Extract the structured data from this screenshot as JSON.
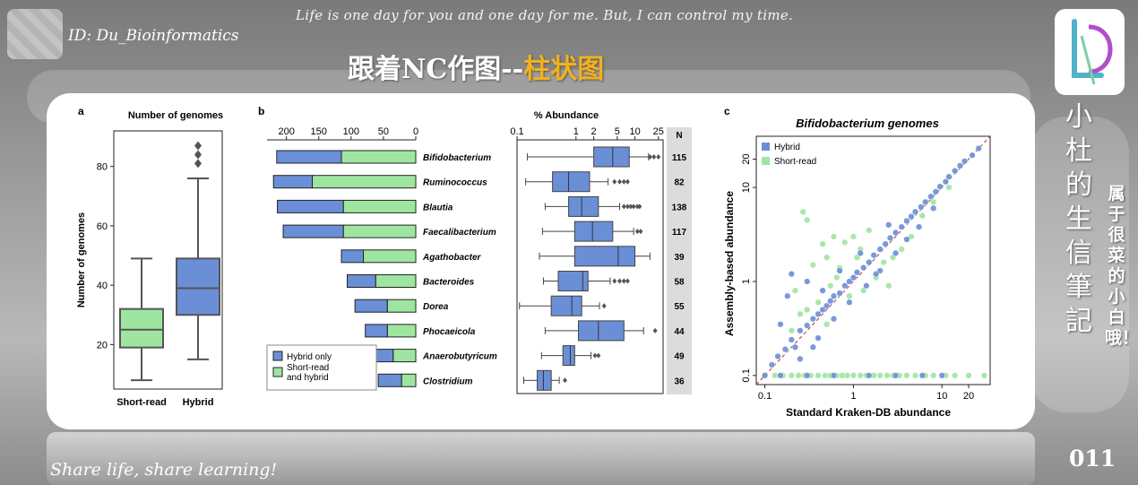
{
  "header": {
    "id_text": "ID: Du_Bioinformatics",
    "motto": "Life is one day for you and one day for me. But, I can control my time.",
    "title_main": "跟着NC作图--",
    "title_highlight": "柱状图",
    "side_title": "小杜的生信筆記",
    "side_subtitle": "属于很菜的小白哦！",
    "footer_share": "Share life, share learning!",
    "page_number": "011"
  },
  "colors": {
    "hybrid": "#6b8fd6",
    "short": "#9ee6a0",
    "accent_title": "#f2b21b",
    "diag": "#b0302a"
  },
  "chart_data": [
    {
      "panel": "a",
      "type": "box",
      "ylabel": "Number of genomes",
      "categories": [
        "Short-read",
        "Hybrid"
      ],
      "yticks": [
        20,
        40,
        60,
        80
      ],
      "ylim": [
        5,
        92
      ],
      "boxes": [
        {
          "name": "Short-read",
          "min": 8,
          "q1": 19,
          "median": 25,
          "q3": 32,
          "max": 49,
          "outliers": []
        },
        {
          "name": "Hybrid",
          "min": 15,
          "q1": 30,
          "median": 39,
          "q3": 49,
          "max": 76,
          "outliers": [
            81,
            84,
            87
          ]
        }
      ]
    },
    {
      "panel": "b",
      "type": "bar",
      "title": "Number of genomes",
      "xticks": [
        200,
        150,
        100,
        50,
        0
      ],
      "xlim": [
        0,
        230
      ],
      "categories": [
        "Bifidobacterium",
        "Ruminococcus",
        "Blautia",
        "Faecalibacterium",
        "Agathobacter",
        "Bacteroides",
        "Dorea",
        "Phocaeicola",
        "Anaerobutyricum",
        "Clostridium"
      ],
      "series": [
        {
          "name": "Hybrid only",
          "values": [
            100,
            60,
            102,
            93,
            34,
            44,
            50,
            34,
            40,
            36
          ]
        },
        {
          "name": "Short-read and hybrid",
          "values": [
            115,
            160,
            112,
            112,
            81,
            62,
            44,
            44,
            35,
            22
          ]
        }
      ],
      "legend": [
        "Hybrid only",
        "Short-read and hybrid"
      ],
      "counts_header": "N",
      "counts": [
        "115",
        "82",
        "138",
        "117",
        "39",
        "58",
        "55",
        "44",
        "49",
        "36"
      ]
    },
    {
      "panel": "b",
      "type": "box",
      "title": "% Abundance",
      "xscale": "log",
      "xticks": [
        "0.1",
        "1",
        "2",
        "5",
        "10",
        "25"
      ],
      "xlim": [
        0.1,
        30
      ],
      "boxes": [
        {
          "name": "Bifidobacterium",
          "min": 0.15,
          "q1": 2.0,
          "median": 4.2,
          "q3": 8.0,
          "max": 17,
          "outliers": [
            18,
            21,
            25
          ]
        },
        {
          "name": "Ruminococcus",
          "min": 0.14,
          "q1": 0.4,
          "median": 0.75,
          "q3": 1.7,
          "max": 3.5,
          "outliers": [
            4.5,
            5.5,
            6.5,
            7.5
          ]
        },
        {
          "name": "Blautia",
          "min": 0.3,
          "q1": 0.75,
          "median": 1.25,
          "q3": 2.4,
          "max": 5.5,
          "outliers": [
            6.5,
            7.5,
            8.5,
            9.5,
            11,
            12
          ]
        },
        {
          "name": "Faecalibacterium",
          "min": 0.27,
          "q1": 0.95,
          "median": 1.9,
          "q3": 4.2,
          "max": 9.5,
          "outliers": [
            11,
            12.5
          ]
        },
        {
          "name": "Agathobacter",
          "min": 0.24,
          "q1": 0.95,
          "median": 5.2,
          "q3": 10,
          "max": 18,
          "outliers": []
        },
        {
          "name": "Bacteroides",
          "min": 0.28,
          "q1": 0.5,
          "median": 1.3,
          "q3": 1.6,
          "max": 3.8,
          "outliers": [
            4.5,
            5.5,
            6.5,
            7.5
          ]
        },
        {
          "name": "Dorea",
          "min": 0.11,
          "q1": 0.38,
          "median": 0.85,
          "q3": 1.25,
          "max": 2.5,
          "outliers": [
            3.0
          ]
        },
        {
          "name": "Phocaeicola",
          "min": 0.3,
          "q1": 1.1,
          "median": 2.4,
          "q3": 6.5,
          "max": 14,
          "outliers": [
            22
          ]
        },
        {
          "name": "Anaerobutyricum",
          "min": 0.26,
          "q1": 0.6,
          "median": 0.8,
          "q3": 0.95,
          "max": 1.8,
          "outliers": [
            2.1,
            2.4
          ]
        },
        {
          "name": "Clostridium",
          "min": 0.13,
          "q1": 0.22,
          "median": 0.28,
          "q3": 0.38,
          "max": 0.52,
          "outliers": [
            0.65
          ]
        }
      ]
    },
    {
      "panel": "c",
      "type": "scatter",
      "title": "Bifidobacterium genomes",
      "xlabel": "Standard Kraken-DB abundance",
      "ylabel": "Assembly-based abundance",
      "xscale": "log",
      "yscale": "log",
      "xticks": [
        "0.1",
        "1",
        "10",
        "20"
      ],
      "yticks": [
        "0.1",
        "1",
        "10",
        "20"
      ],
      "xlim": [
        0.08,
        35
      ],
      "ylim": [
        0.08,
        35
      ],
      "legend": [
        "Hybrid",
        "Short-read"
      ],
      "diagonal": true,
      "series": [
        {
          "name": "Hybrid",
          "points": [
            [
              0.1,
              0.1
            ],
            [
              0.12,
              0.13
            ],
            [
              0.14,
              0.16
            ],
            [
              0.17,
              0.19
            ],
            [
              0.2,
              0.24
            ],
            [
              0.22,
              0.2
            ],
            [
              0.25,
              0.3
            ],
            [
              0.3,
              0.34
            ],
            [
              0.35,
              0.4
            ],
            [
              0.4,
              0.45
            ],
            [
              0.45,
              0.5
            ],
            [
              0.5,
              0.55
            ],
            [
              0.55,
              0.62
            ],
            [
              0.6,
              0.7
            ],
            [
              0.7,
              0.75
            ],
            [
              0.8,
              0.9
            ],
            [
              0.9,
              1.0
            ],
            [
              1.0,
              1.1
            ],
            [
              1.1,
              1.25
            ],
            [
              1.3,
              1.4
            ],
            [
              1.5,
              1.6
            ],
            [
              1.7,
              1.9
            ],
            [
              2.0,
              2.2
            ],
            [
              2.3,
              2.5
            ],
            [
              2.6,
              2.9
            ],
            [
              3.0,
              3.3
            ],
            [
              3.5,
              3.8
            ],
            [
              4.0,
              4.4
            ],
            [
              4.5,
              4.9
            ],
            [
              5.0,
              5.5
            ],
            [
              5.8,
              6.2
            ],
            [
              6.5,
              7.0
            ],
            [
              7.5,
              8.0
            ],
            [
              8.5,
              9.0
            ],
            [
              9.5,
              10.2
            ],
            [
              11,
              11.5
            ],
            [
              12,
              13
            ],
            [
              14,
              15
            ],
            [
              16,
              17
            ],
            [
              18,
              19
            ],
            [
              22,
              22
            ],
            [
              26,
              26
            ],
            [
              0.18,
              0.7
            ],
            [
              0.3,
              1.0
            ],
            [
              0.25,
              0.15
            ],
            [
              0.6,
              0.4
            ],
            [
              0.9,
              0.6
            ],
            [
              1.4,
              0.9
            ],
            [
              2.0,
              1.3
            ],
            [
              3.0,
              2.0
            ],
            [
              4.0,
              2.8
            ],
            [
              0.45,
              0.8
            ],
            [
              1.2,
              2.0
            ],
            [
              2.5,
              4.0
            ],
            [
              0.7,
              1.3
            ],
            [
              0.2,
              1.2
            ],
            [
              0.15,
              0.35
            ],
            [
              5.5,
              3.8
            ],
            [
              8.0,
              6.0
            ],
            [
              0.15,
              0.1
            ],
            [
              0.3,
              0.1
            ],
            [
              0.6,
              0.1
            ],
            [
              1.5,
              0.1
            ],
            [
              3.0,
              0.1
            ],
            [
              6.0,
              0.1
            ],
            [
              10,
              0.1
            ],
            [
              0.4,
              0.25
            ],
            [
              1.8,
              1.2
            ],
            [
              0.35,
              0.2
            ]
          ]
        },
        {
          "name": "Short-read",
          "points": [
            [
              0.1,
              0.1
            ],
            [
              0.13,
              0.1
            ],
            [
              0.16,
              0.1
            ],
            [
              0.2,
              0.1
            ],
            [
              0.24,
              0.1
            ],
            [
              0.28,
              0.1
            ],
            [
              0.33,
              0.1
            ],
            [
              0.4,
              0.1
            ],
            [
              0.48,
              0.1
            ],
            [
              0.55,
              0.1
            ],
            [
              0.65,
              0.1
            ],
            [
              0.75,
              0.1
            ],
            [
              0.85,
              0.1
            ],
            [
              1.0,
              0.1
            ],
            [
              1.2,
              0.1
            ],
            [
              1.4,
              0.1
            ],
            [
              1.7,
              0.1
            ],
            [
              2.0,
              0.1
            ],
            [
              2.4,
              0.1
            ],
            [
              2.8,
              0.1
            ],
            [
              3.3,
              0.1
            ],
            [
              4.0,
              0.1
            ],
            [
              5.0,
              0.1
            ],
            [
              6.5,
              0.1
            ],
            [
              8.0,
              0.1
            ],
            [
              11,
              0.1
            ],
            [
              14,
              0.1
            ],
            [
              20,
              0.1
            ],
            [
              30,
              0.1
            ],
            [
              0.27,
              5.5
            ],
            [
              0.3,
              4.5
            ],
            [
              0.45,
              2.5
            ],
            [
              0.6,
              3.0
            ],
            [
              0.8,
              2.6
            ],
            [
              1.0,
              3.0
            ],
            [
              1.2,
              2.2
            ],
            [
              1.5,
              3.5
            ],
            [
              0.35,
              1.5
            ],
            [
              0.5,
              1.8
            ],
            [
              0.7,
              1.4
            ],
            [
              0.9,
              0.7
            ],
            [
              1.8,
              1.1
            ],
            [
              2.2,
              1.6
            ],
            [
              2.8,
              1.8
            ],
            [
              0.4,
              0.6
            ],
            [
              0.55,
              0.9
            ],
            [
              3.5,
              2.2
            ],
            [
              4.5,
              3.0
            ],
            [
              2.5,
              0.9
            ],
            [
              0.25,
              0.45
            ],
            [
              0.2,
              0.3
            ],
            [
              1.3,
              0.8
            ],
            [
              0.65,
              1.1
            ],
            [
              6.0,
              5.0
            ],
            [
              8.0,
              7.0
            ],
            [
              12,
              10
            ],
            [
              0.22,
              0.8
            ],
            [
              0.3,
              0.5
            ],
            [
              1.1,
              1.8
            ],
            [
              0.5,
              0.35
            ]
          ]
        }
      ]
    }
  ]
}
